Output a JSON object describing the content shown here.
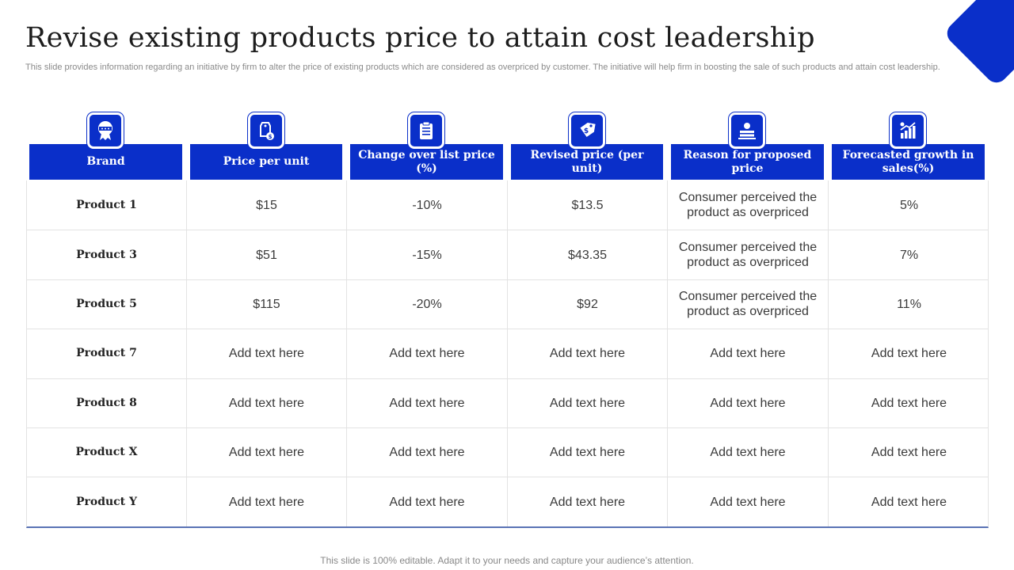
{
  "slide": {
    "title": "Revise existing products price to attain cost leadership",
    "subtitle": "This slide provides information regarding an initiative by firm to alter the price of existing products which are considered as overpriced by customer. The initiative will help firm in boosting the sale of such products and attain cost leadership.",
    "footer": "This slide is 100% editable. Adapt it to your needs and capture your audience’s attention.",
    "accent_color": "#0a2fc9"
  },
  "table": {
    "headers": [
      {
        "label": "Brand",
        "icon": "award-badge-icon"
      },
      {
        "label": "Price per unit",
        "icon": "price-tag-hand-icon"
      },
      {
        "label": "Change over list price (%)",
        "icon": "clipboard-list-icon"
      },
      {
        "label": "Revised price (per unit)",
        "icon": "dollar-tag-icon"
      },
      {
        "label": "Reason for proposed price",
        "icon": "money-stack-hand-icon"
      },
      {
        "label": "Forecasted growth in sales(%)",
        "icon": "growth-chart-icon"
      }
    ],
    "rows": [
      [
        "Product 1",
        "$15",
        "-10%",
        "$13.5",
        "Consumer perceived the product as overpriced",
        "5%"
      ],
      [
        "Product 3",
        "$51",
        "-15%",
        "$43.35",
        "Consumer perceived the product as overpriced",
        "7%"
      ],
      [
        "Product 5",
        "$115",
        "-20%",
        "$92",
        "Consumer perceived the product as overpriced",
        "11%"
      ],
      [
        "Product 7",
        "Add text here",
        "Add text here",
        "Add text here",
        "Add text here",
        "Add text here"
      ],
      [
        "Product 8",
        "Add text here",
        "Add text here",
        "Add text here",
        "Add text here",
        "Add text here"
      ],
      [
        "Product X",
        "Add text here",
        "Add text here",
        "Add text here",
        "Add text here",
        "Add text here"
      ],
      [
        "Product Y",
        "Add text here",
        "Add text here",
        "Add text here",
        "Add text here",
        "Add text here"
      ]
    ]
  }
}
